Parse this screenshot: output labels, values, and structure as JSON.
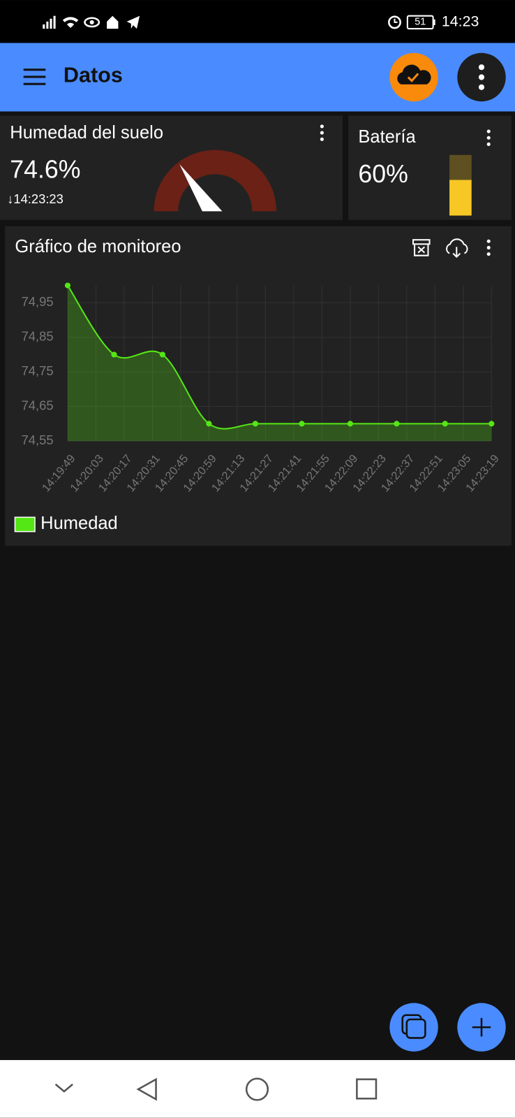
{
  "status_bar": {
    "battery": "51",
    "time": "14:23"
  },
  "app_bar": {
    "title": "Datos"
  },
  "widgets": {
    "humidity": {
      "title": "Humedad del suelo",
      "value": "74.6%",
      "updated": "↓14:23:23"
    },
    "battery": {
      "title": "Batería",
      "value": "60%"
    }
  },
  "chart_data": {
    "type": "line",
    "title": "Gráfico de monitoreo",
    "x": [
      "14:19:49",
      "14:20:12",
      "14:20:36",
      "14:20:59",
      "14:21:22",
      "14:21:45",
      "14:22:09",
      "14:22:32",
      "14:22:56",
      "14:23:19"
    ],
    "series": [
      {
        "name": "Humedad",
        "color": "#55e615",
        "values": [
          75.0,
          74.8,
          74.8,
          74.6,
          74.6,
          74.6,
          74.6,
          74.6,
          74.6,
          74.6
        ]
      }
    ],
    "xlim": [
      "14:19:49",
      "14:23:19"
    ],
    "xticks": [
      "14:19:49",
      "14:20:03",
      "14:20:17",
      "14:20:31",
      "14:20:45",
      "14:20:59",
      "14:21:13",
      "14:21:27",
      "14:21:41",
      "14:21:55",
      "14:22:09",
      "14:22:23",
      "14:22:37",
      "14:22:51",
      "14:23:05",
      "14:23:19"
    ],
    "ylim": [
      74.55,
      75.0
    ],
    "yticks": [
      {
        "value": 74.55,
        "label": "74,55"
      },
      {
        "value": 74.65,
        "label": "74,65"
      },
      {
        "value": 74.75,
        "label": "74,75"
      },
      {
        "value": 74.85,
        "label": "74,85"
      },
      {
        "value": 74.95,
        "label": "74,95"
      }
    ],
    "grid": true,
    "legend": "bottom-left"
  }
}
